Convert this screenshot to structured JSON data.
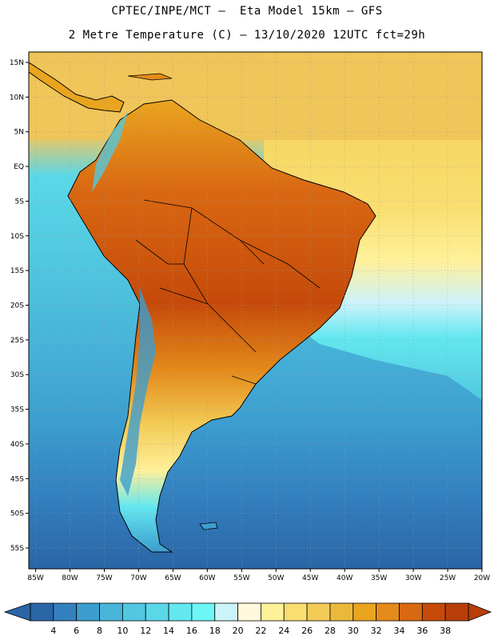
{
  "header": {
    "line1": "CPTEC/INPE/MCT –  Eta Model 15km – GFS",
    "line2": "2 Metre Temperature (C) – 13/10/2020 12UTC fct=29h"
  },
  "map": {
    "lat_labels": [
      "15N",
      "10N",
      "5N",
      "EQ",
      "5S",
      "10S",
      "15S",
      "20S",
      "25S",
      "30S",
      "35S",
      "40S",
      "45S",
      "50S",
      "55S"
    ],
    "lon_labels": [
      "85W",
      "80W",
      "75W",
      "70W",
      "65W",
      "60W",
      "55W",
      "50W",
      "45W",
      "40W",
      "35W",
      "30W",
      "25W",
      "20W"
    ],
    "lat_range": [
      16.5,
      -58
    ],
    "lon_range": [
      -86,
      -20
    ]
  },
  "colorbar": {
    "labels": [
      "4",
      "6",
      "8",
      "10",
      "12",
      "14",
      "16",
      "18",
      "20",
      "22",
      "24",
      "26",
      "28",
      "30",
      "32",
      "34",
      "36",
      "38"
    ],
    "colors": [
      "#2a65a6",
      "#3380bf",
      "#3c9dcf",
      "#48b5d9",
      "#52c8e0",
      "#5ad8e8",
      "#64e7ef",
      "#6cf7f7",
      "#cdf3fa",
      "#fff8dc",
      "#fff09a",
      "#f9df70",
      "#f2cc57",
      "#ebb93a",
      "#e9a51f",
      "#e48b1b",
      "#d96812",
      "#c54a0a",
      "#b83e0a"
    ],
    "low_color": "#2a65a6",
    "high_color": "#b83e0a"
  },
  "colors": {
    "ocean_warm": "#f0c45a",
    "ocean_cold": "#2f6fb0",
    "coast": "#000000",
    "grid": "#9a9a9a"
  }
}
